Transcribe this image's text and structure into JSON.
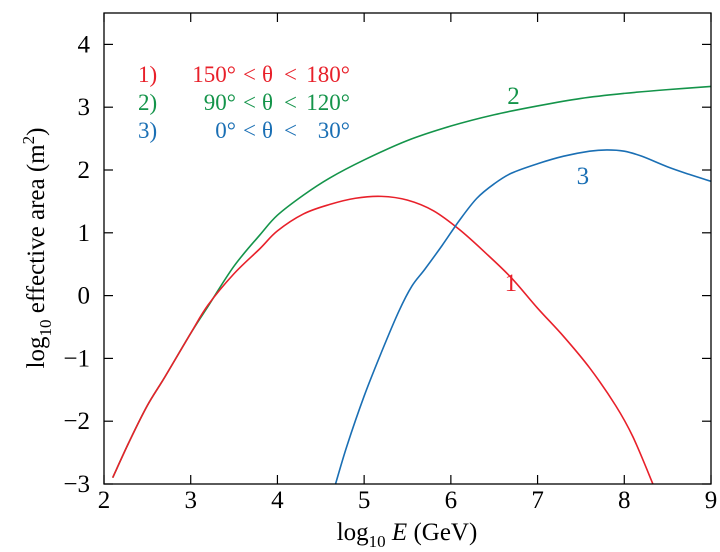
{
  "chart_data": {
    "type": "line",
    "xlabel": {
      "prefix": "log",
      "sub": "10",
      "italic": "E",
      "suffix": "(GeV)"
    },
    "ylabel": {
      "prefix": "log",
      "sub": "10",
      "main": "effective area  (m",
      "sup": "2",
      "close": ")"
    },
    "xlim": [
      2,
      9
    ],
    "ylim": [
      -3,
      4.5
    ],
    "xticks": [
      2,
      3,
      4,
      5,
      6,
      7,
      8,
      9
    ],
    "yticks": [
      -3,
      -2,
      -1,
      0,
      1,
      2,
      3,
      4
    ],
    "ytick_labels": [
      "−3",
      "−2",
      "−1",
      "0",
      "1",
      "2",
      "3",
      "4"
    ],
    "legend": [
      {
        "num": "1)",
        "lo": "150°",
        "hi": "180°",
        "color": "#e8202a"
      },
      {
        "num": "2)",
        "lo": "90°",
        "hi": "120°",
        "color": "#14944a"
      },
      {
        "num": "3)",
        "lo": "0°",
        "hi": "30°",
        "color": "#1a6fb4"
      }
    ],
    "legend_symbol": "θ",
    "legend_op": "<",
    "series": [
      {
        "label": "1",
        "color": "#e8202a",
        "label_at": [
          6.62,
          0.07
        ],
        "x": [
          2.1,
          2.3,
          2.5,
          2.7,
          3.0,
          3.2,
          3.5,
          3.8,
          4.0,
          4.3,
          4.6,
          4.9,
          5.2,
          5.5,
          5.8,
          6.1,
          6.4,
          6.7,
          7.0,
          7.3,
          7.6,
          7.9,
          8.1,
          8.33
        ],
        "y": [
          -2.9,
          -2.3,
          -1.75,
          -1.3,
          -0.6,
          -0.15,
          0.35,
          0.75,
          1.03,
          1.3,
          1.45,
          1.55,
          1.58,
          1.52,
          1.35,
          1.05,
          0.68,
          0.28,
          -0.2,
          -0.65,
          -1.15,
          -1.75,
          -2.25,
          -3.0
        ]
      },
      {
        "label": "2",
        "color": "#14944a",
        "label_at": [
          6.65,
          3.05
        ],
        "x": [
          2.1,
          2.3,
          2.5,
          2.7,
          3.0,
          3.2,
          3.5,
          3.8,
          4.0,
          4.3,
          4.6,
          5.0,
          5.5,
          6.0,
          6.5,
          7.0,
          7.5,
          8.0,
          8.5,
          9.0
        ],
        "y": [
          -2.9,
          -2.3,
          -1.75,
          -1.3,
          -0.6,
          -0.17,
          0.47,
          0.97,
          1.28,
          1.6,
          1.87,
          2.16,
          2.47,
          2.7,
          2.88,
          3.02,
          3.14,
          3.22,
          3.28,
          3.33
        ]
      },
      {
        "label": "3",
        "color": "#1a6fb4",
        "label_at": [
          7.45,
          1.78
        ],
        "x": [
          4.67,
          4.8,
          5.0,
          5.2,
          5.4,
          5.55,
          5.7,
          5.9,
          6.1,
          6.3,
          6.5,
          6.7,
          7.0,
          7.3,
          7.6,
          7.8,
          8.0,
          8.2,
          8.5,
          8.75,
          9.0
        ],
        "y": [
          -3.0,
          -2.4,
          -1.6,
          -0.9,
          -0.25,
          0.15,
          0.42,
          0.8,
          1.2,
          1.55,
          1.78,
          1.95,
          2.1,
          2.22,
          2.3,
          2.32,
          2.3,
          2.22,
          2.05,
          1.93,
          1.82
        ]
      }
    ]
  }
}
